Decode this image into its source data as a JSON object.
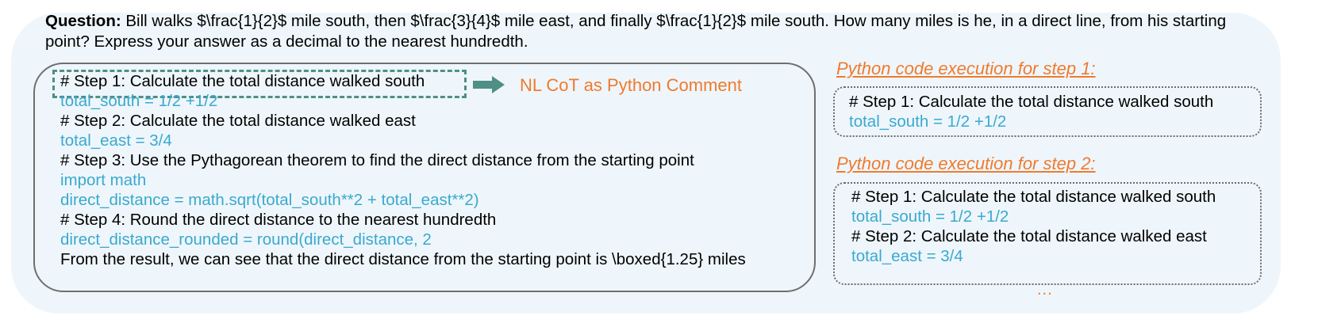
{
  "question": {
    "label": "Question:",
    "text": " Bill walks $\\frac{1}{2}$ mile south, then $\\frac{3}{4}$ mile east, and finally $\\frac{1}{2}$ mile south. How many miles is he, in a direct line, from his starting point?  Express your answer as a decimal to the nearest hundredth."
  },
  "main": {
    "annotation": "NL CoT as Python Comment",
    "lines": [
      {
        "kind": "comment",
        "text": "# Step 1: Calculate the total distance walked south"
      },
      {
        "kind": "code",
        "text": "total_south = 1/2 +1/2"
      },
      {
        "kind": "comment",
        "text": "# Step 2: Calculate the total distance walked east"
      },
      {
        "kind": "code",
        "text": "total_east = 3/4"
      },
      {
        "kind": "comment",
        "text": "# Step 3: Use the Pythagorean theorem to find the direct distance from the starting point"
      },
      {
        "kind": "code",
        "text": "import math"
      },
      {
        "kind": "code",
        "text": "direct_distance = math.sqrt(total_south**2 + total_east**2)"
      },
      {
        "kind": "comment",
        "text": "# Step 4: Round the direct distance to the nearest hundredth"
      },
      {
        "kind": "code",
        "text": "direct_distance_rounded = round(direct_distance, 2"
      },
      {
        "kind": "comment",
        "text": "From the result, we can see that the direct distance from the starting point is \\boxed{1.25} miles"
      }
    ]
  },
  "exec1": {
    "title": "Python code execution for step 1:",
    "lines": [
      {
        "kind": "comment",
        "text": "# Step 1: Calculate the total distance walked south"
      },
      {
        "kind": "code",
        "text": "total_south = 1/2 +1/2"
      }
    ]
  },
  "exec2": {
    "title": "Python code execution for step 2:",
    "lines": [
      {
        "kind": "comment",
        "text": "# Step 1: Calculate the total distance walked south"
      },
      {
        "kind": "code",
        "text": "total_south = 1/2 +1/2"
      },
      {
        "kind": "comment",
        "text": "# Step 2: Calculate the total distance walked east"
      },
      {
        "kind": "code",
        "text": "total_east = 3/4"
      }
    ]
  },
  "ellipsis": "...",
  "colors": {
    "code": "#3aa9cf",
    "comment": "#000000",
    "accent": "#f07a2e",
    "highlight_border": "#4f8f85",
    "panel_bg": "#eef6fb"
  },
  "icons": {
    "arrow": "right-arrow-icon"
  }
}
